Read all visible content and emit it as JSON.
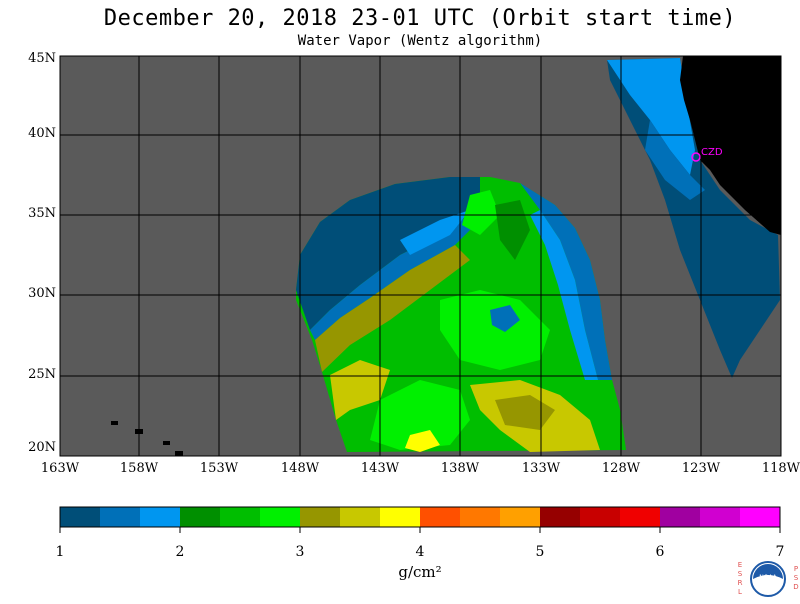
{
  "header": {
    "title": "December 20, 2018  23-01 UTC  (Orbit start time)",
    "subtitle": "Water Vapor (Wentz algorithm)"
  },
  "map": {
    "latitude_labels": [
      "45N",
      "40N",
      "35N",
      "30N",
      "25N",
      "20N"
    ],
    "longitude_labels": [
      "163W",
      "158W",
      "153W",
      "148W",
      "143W",
      "138W",
      "133W",
      "128W",
      "123W",
      "118W"
    ],
    "station_label": "CZD",
    "colors": {
      "no_data": "#5a5a5a",
      "land": "#000000",
      "grid": "#000000",
      "station": "#ff00ff"
    }
  },
  "colorbar": {
    "tick_labels": [
      "1",
      "2",
      "3",
      "4",
      "5",
      "6",
      "7"
    ],
    "unit_label": "g/cm²",
    "colors": [
      "#004e78",
      "#0070b8",
      "#0096f0",
      "#008f00",
      "#00be00",
      "#00f000",
      "#969600",
      "#c8c800",
      "#ffff00",
      "#ff5000",
      "#ff7800",
      "#ffa000",
      "#960000",
      "#c80000",
      "#f00000",
      "#a000a0",
      "#d000d0",
      "#ff00ff"
    ]
  },
  "logo": {
    "left_letters": "ESRL",
    "right_letters": "PSD",
    "center_text": "NOAA"
  }
}
